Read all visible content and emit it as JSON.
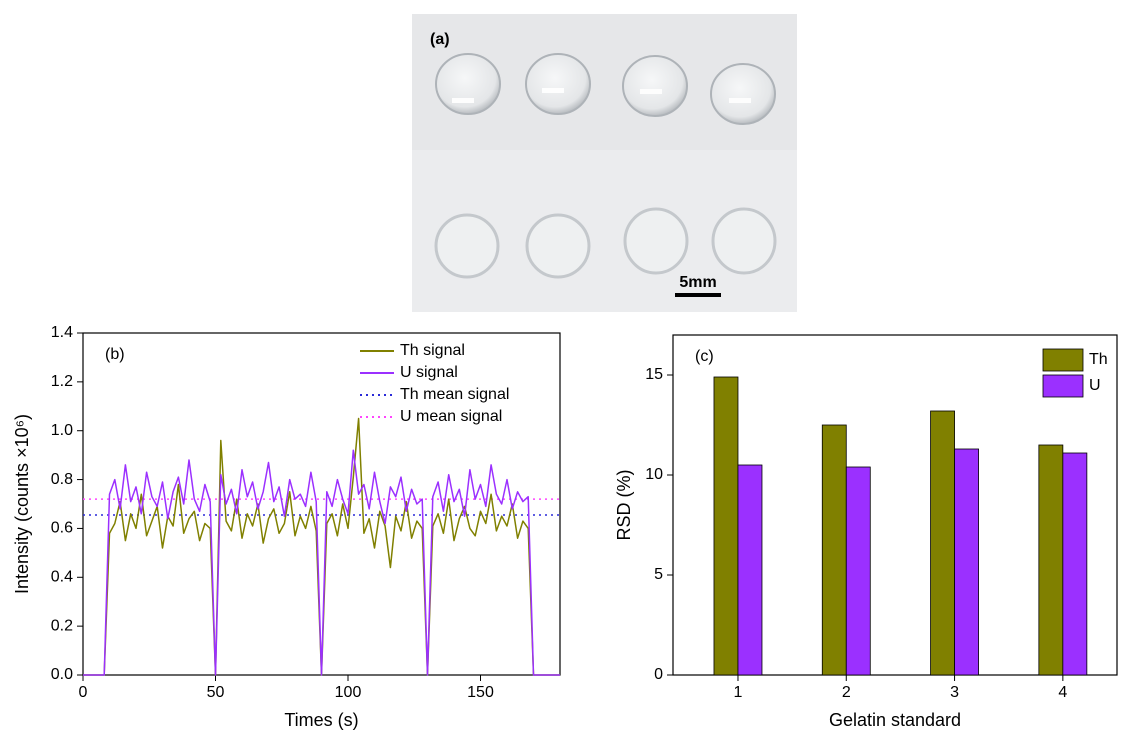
{
  "photo": {
    "panel_label": "(a)",
    "scale_label": "5mm"
  },
  "chart_data": [
    {
      "type": "line",
      "panel_label": "(b)",
      "x_label": "Times (s)",
      "y_label": "Intensity (counts ×10⁶)",
      "xlim": [
        0,
        180
      ],
      "xticks": [
        0,
        50,
        100,
        150
      ],
      "ylim": [
        0,
        1.4
      ],
      "yticks": [
        {
          "value": 0,
          "label": "0.0"
        },
        0.2,
        0.4,
        0.6,
        0.8,
        {
          "value": 1,
          "label": "1.0"
        },
        1.2,
        1.4
      ],
      "legend": "upper right",
      "x": [
        0,
        2,
        4,
        6,
        8,
        10,
        12,
        14,
        16,
        18,
        20,
        22,
        24,
        26,
        28,
        30,
        32,
        34,
        36,
        38,
        40,
        42,
        44,
        46,
        48,
        50,
        52,
        54,
        56,
        58,
        60,
        62,
        64,
        66,
        68,
        70,
        72,
        74,
        76,
        78,
        80,
        82,
        84,
        86,
        88,
        90,
        92,
        94,
        96,
        98,
        100,
        102,
        104,
        106,
        108,
        110,
        112,
        114,
        116,
        118,
        120,
        122,
        124,
        126,
        128,
        130,
        132,
        134,
        136,
        138,
        140,
        142,
        144,
        146,
        148,
        150,
        152,
        154,
        156,
        158,
        160,
        162,
        164,
        166,
        168,
        170,
        172,
        174,
        176,
        178,
        180
      ],
      "series": [
        {
          "name": "Th signal",
          "color": "#808000",
          "values": [
            0,
            0,
            0,
            0,
            0,
            0.58,
            0.62,
            0.71,
            0.55,
            0.66,
            0.6,
            0.74,
            0.57,
            0.63,
            0.69,
            0.52,
            0.65,
            0.61,
            0.78,
            0.58,
            0.64,
            0.67,
            0.55,
            0.62,
            0.6,
            0,
            0.96,
            0.63,
            0.59,
            0.72,
            0.56,
            0.66,
            0.61,
            0.7,
            0.54,
            0.64,
            0.68,
            0.58,
            0.62,
            0.75,
            0.57,
            0.65,
            0.6,
            0.69,
            0.59,
            0,
            0.62,
            0.66,
            0.57,
            0.7,
            0.6,
            0.81,
            1.05,
            0.58,
            0.64,
            0.52,
            0.67,
            0.61,
            0.44,
            0.65,
            0.59,
            0.71,
            0.56,
            0.63,
            0.6,
            0,
            0.61,
            0.66,
            0.58,
            0.72,
            0.55,
            0.64,
            0.69,
            0.6,
            0.57,
            0.67,
            0.62,
            0.74,
            0.59,
            0.65,
            0.61,
            0.7,
            0.56,
            0.63,
            0.6,
            0,
            0,
            0,
            0,
            0,
            0
          ]
        },
        {
          "name": "U signal",
          "color": "#9b30ff",
          "values": [
            0,
            0,
            0,
            0,
            0,
            0.74,
            0.8,
            0.68,
            0.86,
            0.71,
            0.77,
            0.66,
            0.83,
            0.73,
            0.69,
            0.79,
            0.64,
            0.75,
            0.81,
            0.7,
            0.88,
            0.72,
            0.67,
            0.78,
            0.71,
            0,
            0.82,
            0.7,
            0.76,
            0.66,
            0.84,
            0.73,
            0.79,
            0.68,
            0.75,
            0.87,
            0.71,
            0.77,
            0.65,
            0.8,
            0.72,
            0.74,
            0.69,
            0.83,
            0.71,
            0,
            0.75,
            0.69,
            0.8,
            0.72,
            0.66,
            0.92,
            0.74,
            0.78,
            0.68,
            0.83,
            0.71,
            0.62,
            0.77,
            0.73,
            0.81,
            0.67,
            0.76,
            0.7,
            0.72,
            0,
            0.73,
            0.79,
            0.67,
            0.82,
            0.71,
            0.76,
            0.65,
            0.84,
            0.72,
            0.78,
            0.69,
            0.86,
            0.74,
            0.7,
            0.8,
            0.68,
            0.75,
            0.71,
            0.73,
            0,
            0,
            0,
            0,
            0,
            0
          ]
        }
      ],
      "mean_lines": [
        {
          "name": "Th mean signal",
          "color": "#2a2ad8",
          "value": 0.655
        },
        {
          "name": "U mean signal",
          "color": "#ff44ff",
          "value": 0.72
        }
      ]
    },
    {
      "type": "bar",
      "panel_label": "(c)",
      "x_label": "Gelatin standard",
      "y_label": "RSD (%)",
      "categories": [
        "1",
        "2",
        "3",
        "4"
      ],
      "ylim": [
        0,
        17
      ],
      "yticks": [
        0,
        5,
        10,
        15
      ],
      "legend": "upper right",
      "series": [
        {
          "name": "Th",
          "color": "#808000",
          "values": [
            14.9,
            12.5,
            13.2,
            11.5
          ]
        },
        {
          "name": "U",
          "color": "#9b30ff",
          "values": [
            10.5,
            10.4,
            11.3,
            11.1
          ]
        }
      ]
    }
  ]
}
